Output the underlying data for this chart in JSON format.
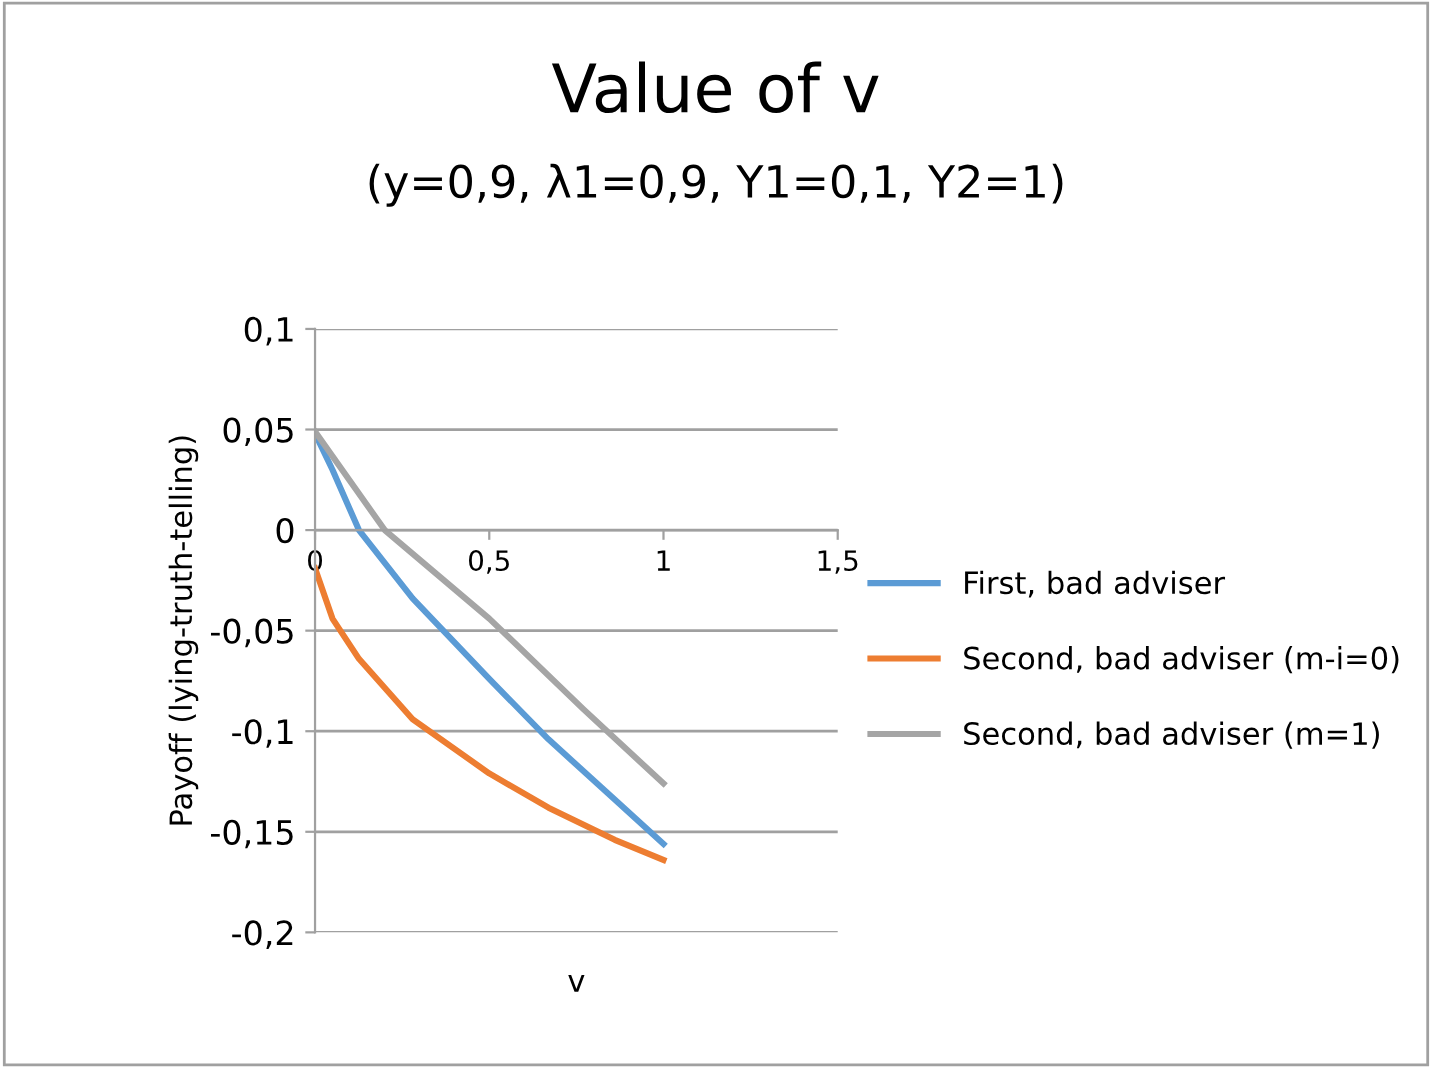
{
  "chart_data": {
    "type": "line",
    "title": "Value of v",
    "subtitle": "(y=0,9, λ1=0,9, Y1=0,1, Y2=1)",
    "xlabel": "v",
    "ylabel": "Payoff (lying-truth-telling)",
    "series": [
      {
        "name": "First, bad adviser",
        "color": "#5b9bd5",
        "x": [
          0,
          0.05,
          0.126,
          0.28,
          0.5,
          0.67,
          0.86,
          1
        ],
        "values": [
          0.048,
          0.03,
          0.0,
          -0.034,
          -0.074,
          -0.104,
          -0.134,
          -0.156
        ]
      },
      {
        "name": "Second, bad adviser (m-i=0)",
        "color": "#ed7d31",
        "x": [
          0,
          0.05,
          0.126,
          0.28,
          0.5,
          0.67,
          0.86,
          1
        ],
        "values": [
          -0.019,
          -0.044,
          -0.064,
          -0.094,
          -0.121,
          -0.138,
          -0.154,
          -0.164
        ]
      },
      {
        "name": "Second, bad adviser (m=1)",
        "color": "#a5a5a5",
        "x": [
          0,
          0.2,
          0.5,
          0.77,
          1
        ],
        "values": [
          0.049,
          0.0,
          -0.044,
          -0.089,
          -0.126
        ]
      }
    ],
    "xlim": [
      0,
      1.5
    ],
    "xticks": [
      0,
      {
        "value": 0.5,
        "label": "0,5"
      },
      1,
      {
        "value": 1.5,
        "label": "1,5"
      }
    ],
    "ylim": [
      -0.2,
      0.1
    ],
    "yticks": [
      {
        "value": -0.2,
        "label": "-0,2"
      },
      {
        "value": -0.15,
        "label": "-0,15"
      },
      {
        "value": -0.1,
        "label": "-0,1"
      },
      {
        "value": -0.05,
        "label": "-0,05"
      },
      0,
      {
        "value": 0.05,
        "label": "0,05"
      },
      {
        "value": 0.1,
        "label": "0,1"
      }
    ],
    "grid": "y",
    "legend": "right",
    "marker": "none",
    "line_style": "solid"
  }
}
